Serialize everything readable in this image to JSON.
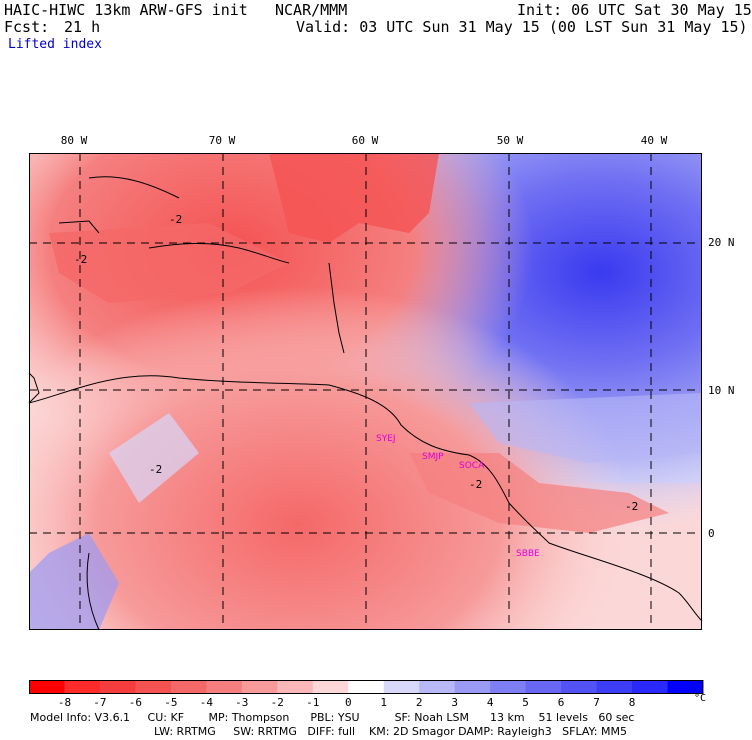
{
  "header": {
    "model": "HAIC-HIWC 13km ARW-GFS init",
    "org": "NCAR/MMM",
    "init": "Init: 06 UTC Sat 30 May 15",
    "fcst_label": "Fcst:",
    "fcst_value": "21 h",
    "valid": "Valid: 03 UTC Sun 31 May 15 (00 LST Sun 31 May 15)",
    "field": "Lifted index"
  },
  "map": {
    "lon_labels": [
      "80 W",
      "70 W",
      "60 W",
      "50 W",
      "40 W"
    ],
    "lat_labels": [
      "20 N",
      "10 N",
      "0"
    ],
    "contour_labels": [
      "-2",
      "-2",
      "-2",
      "-2",
      "-2"
    ],
    "stations": [
      "SYEJ",
      "SMJP",
      "SOCA",
      "SBBE"
    ],
    "station_color": "#e000e0"
  },
  "colorbar": {
    "labels": [
      "-8",
      "-7",
      "-6",
      "-5",
      "-4",
      "-3",
      "-2",
      "-1",
      "0",
      "1",
      "2",
      "3",
      "4",
      "5",
      "6",
      "7",
      "8"
    ],
    "unit": "°C",
    "colors": [
      "#ff0000",
      "#ff2a2a",
      "#f53d3d",
      "#f55252",
      "#f56868",
      "#f57f7f",
      "#f79a9a",
      "#fab8b8",
      "#fcd7d7",
      "#ffffff",
      "#d7d7fa",
      "#b8b8f7",
      "#9a9af5",
      "#7f7ff5",
      "#6868f5",
      "#5252f5",
      "#3d3df5",
      "#2a2aff",
      "#0000ff"
    ]
  },
  "footer": {
    "line1": "Model Info: V3.6.1     CU: KF       MP: Thompson      PBL: YSU          SF: Noah LSM      13 km    51 levels   60 sec",
    "line2": "LW: RRTMG     SW: RRTMG   DIFF: full    KM: 2D Smagor DAMP: Rayleigh3   SFLAY: MM5"
  }
}
